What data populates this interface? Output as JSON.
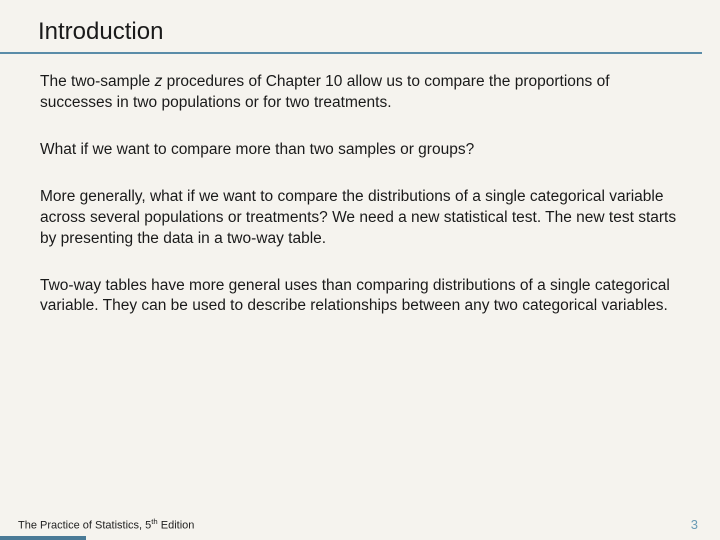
{
  "title": "Introduction",
  "title_fontsize": 24,
  "title_underline_color": "#5a8ca8",
  "background_color": "#f5f3ee",
  "body_fontsize": 15.5,
  "body_color": "#1a1a1a",
  "paragraphs": {
    "p1_a": "The two-sample ",
    "p1_z": "z",
    "p1_b": " procedures of Chapter 10 allow us to compare the proportions of successes in two populations or for two treatments.",
    "p2": "What if we want to compare more than two samples or groups?",
    "p3": "More generally, what if we want to compare the distributions of a single categorical variable across several populations or treatments? We need a new statistical test. The new test starts by presenting the data in a two-way table.",
    "p4": "Two-way tables have more general uses than comparing distributions of a single categorical variable. They can be used to describe relationships between any two categorical variables."
  },
  "footer": {
    "left_a": "The Practice of Statistics, 5",
    "left_sup": "th",
    "left_b": " Edition",
    "page_number": "3",
    "page_number_color": "#6a9bb5",
    "bar_color": "#4a7a96"
  }
}
